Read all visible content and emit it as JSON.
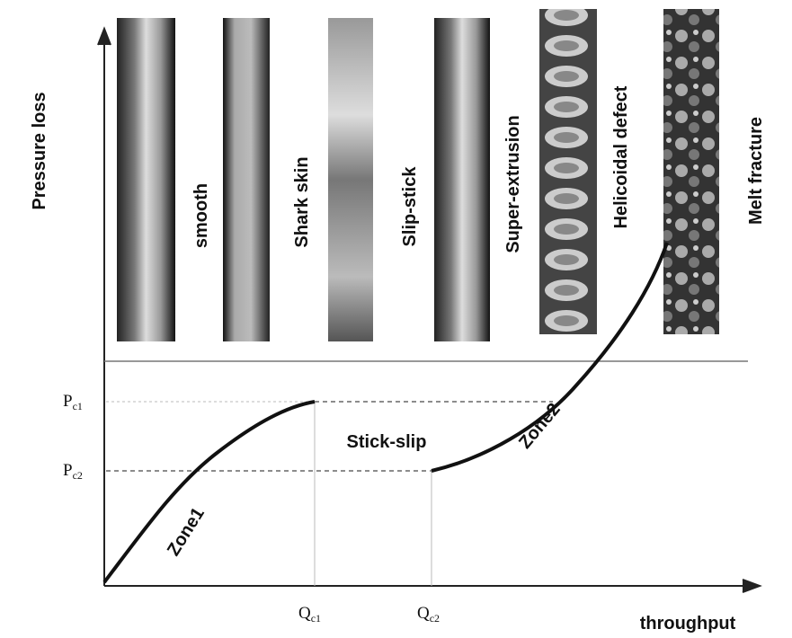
{
  "axes": {
    "y_label": "Pressure loss",
    "x_label": "throughput"
  },
  "photos": [
    {
      "label": "smooth"
    },
    {
      "label": "Shark skin"
    },
    {
      "label": "Slip-stick"
    },
    {
      "label": "Super-extrusion"
    },
    {
      "label": "Helicoidal defect"
    },
    {
      "label": "Melt fracture"
    }
  ],
  "levels": {
    "pc1": {
      "text": "P",
      "sub": "c1"
    },
    "pc2": {
      "text": "P",
      "sub": "c2"
    },
    "qc1": {
      "text": "Q",
      "sub": "c1"
    },
    "qc2": {
      "text": "Q",
      "sub": "c2"
    }
  },
  "regions": {
    "stick_slip": "Stick-slip",
    "zone1": "Zone1",
    "zone2": "Zone2"
  }
}
